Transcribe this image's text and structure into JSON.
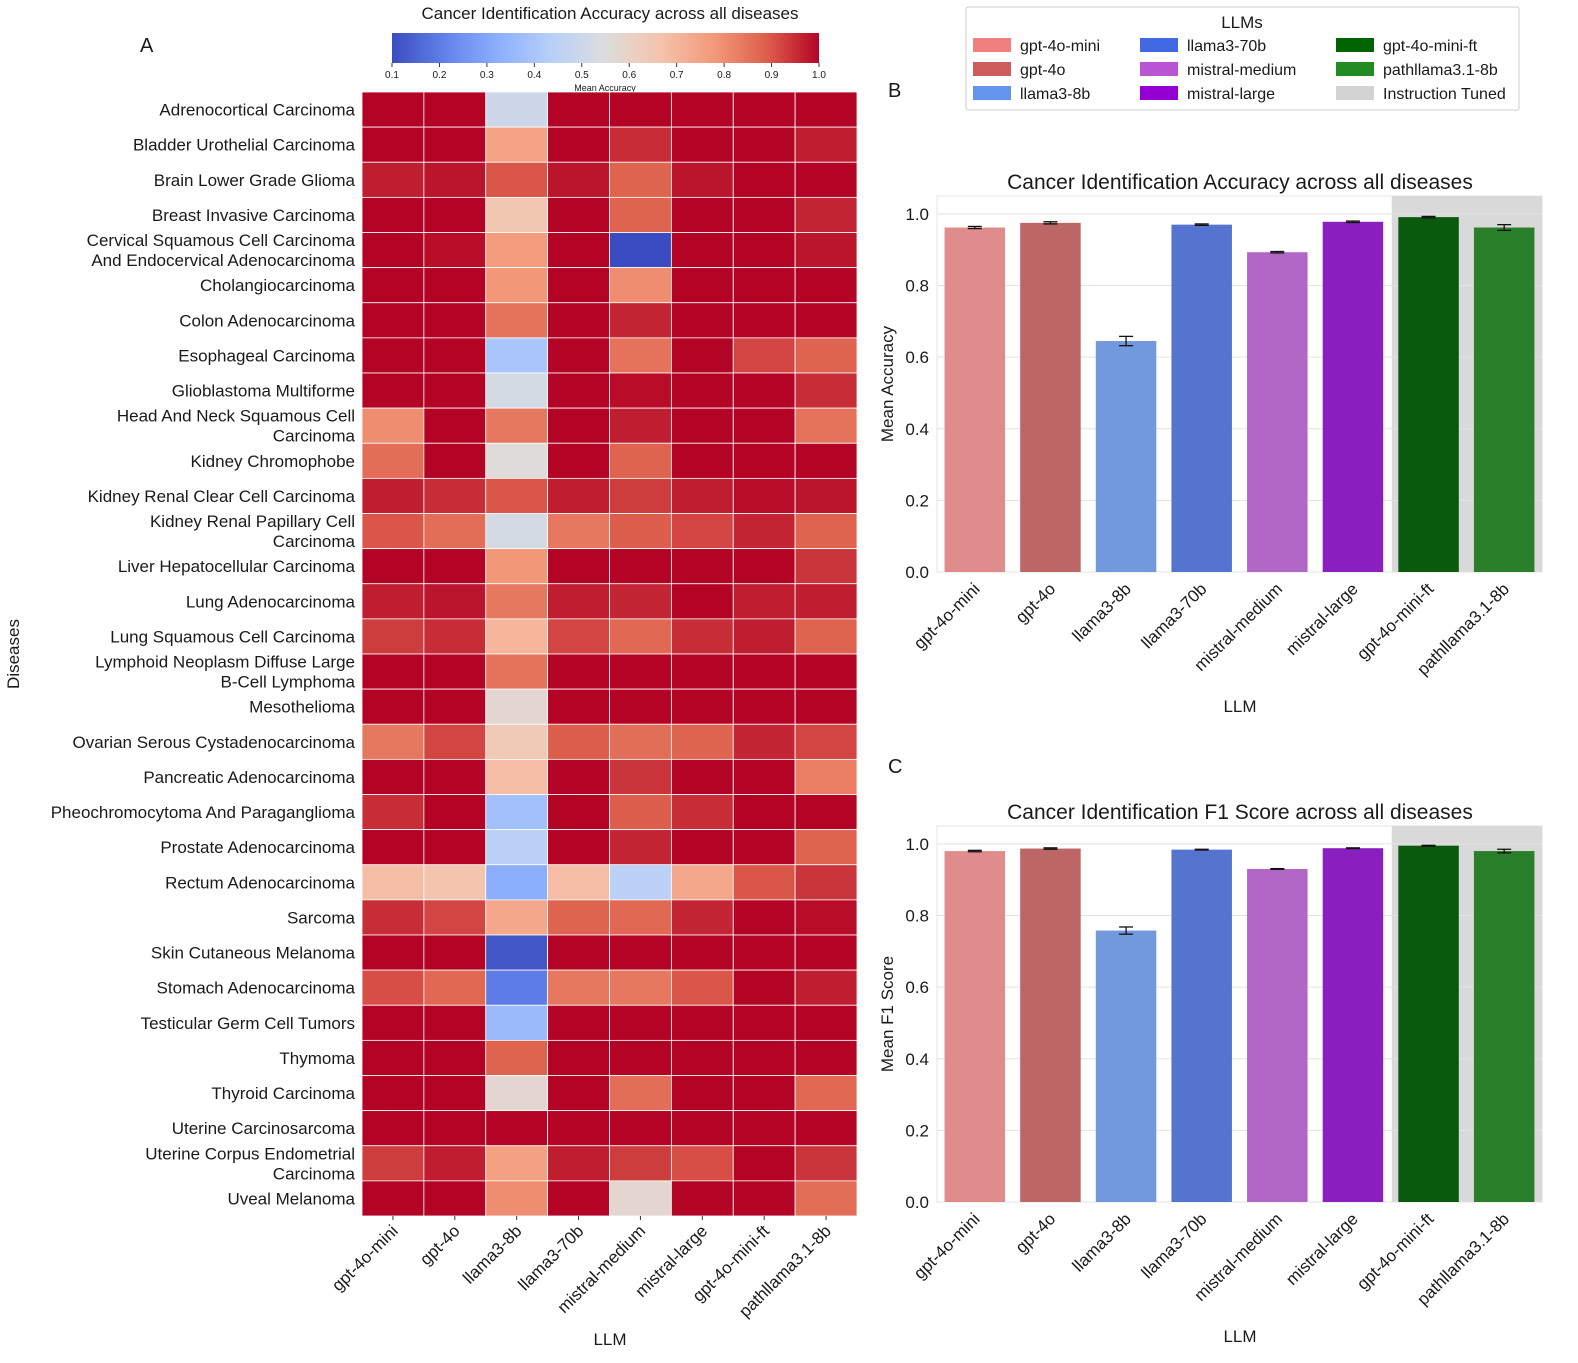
{
  "panels": {
    "a": "A",
    "b": "B",
    "c": "C"
  },
  "heatmap": {
    "title": "Cancer Identification Accuracy across all diseases",
    "xlabel": "LLM",
    "ylabel": "Diseases",
    "colorbar_label": "Mean Accuracy",
    "colorbar_ticks": [
      "0.1",
      "0.2",
      "0.3",
      "0.4",
      "0.5",
      "0.6",
      "0.7",
      "0.8",
      "0.9",
      "1.0"
    ]
  },
  "legend": {
    "title": "LLMs",
    "items": [
      {
        "label": "gpt-4o-mini",
        "color": "#f08080"
      },
      {
        "label": "gpt-4o",
        "color": "#cd5c5c"
      },
      {
        "label": "llama3-8b",
        "color": "#6495ed"
      },
      {
        "label": "llama3-70b",
        "color": "#4169e1"
      },
      {
        "label": "mistral-medium",
        "color": "#ba55d3"
      },
      {
        "label": "mistral-large",
        "color": "#9400d3"
      },
      {
        "label": "gpt-4o-mini-ft",
        "color": "#006400"
      },
      {
        "label": "pathllama3.1-8b",
        "color": "#228b22"
      },
      {
        "label": "Instruction Tuned",
        "color": "#d3d3d3"
      }
    ]
  },
  "chart_data": [
    {
      "type": "heatmap",
      "title": "Cancer Identification Accuracy across all diseases",
      "xlabel": "LLM",
      "ylabel": "Diseases",
      "colorbar_label": "Mean Accuracy",
      "vmin": 0.1,
      "vmax": 1.0,
      "colormap": "coolwarm",
      "columns": [
        "gpt-4o-mini",
        "gpt-4o",
        "llama3-8b",
        "llama3-70b",
        "mistral-medium",
        "mistral-large",
        "gpt-4o-mini-ft",
        "pathllama3.1-8b"
      ],
      "rows": [
        "Adrenocortical Carcinoma",
        "Bladder Urothelial Carcinoma",
        "Brain Lower Grade Glioma",
        "Breast Invasive Carcinoma",
        "Cervical Squamous Cell Carcinoma And Endocervical Adenocarcinoma",
        "Cholangiocarcinoma",
        "Colon Adenocarcinoma",
        "Esophageal Carcinoma",
        "Glioblastoma Multiforme",
        "Head And Neck Squamous Cell Carcinoma",
        "Kidney Chromophobe",
        "Kidney Renal Clear Cell Carcinoma",
        "Kidney Renal Papillary Cell Carcinoma",
        "Liver Hepatocellular Carcinoma",
        "Lung Adenocarcinoma",
        "Lung Squamous Cell Carcinoma",
        "Lymphoid Neoplasm Diffuse Large B-Cell Lymphoma",
        "Mesothelioma",
        "Ovarian Serous Cystadenocarcinoma",
        "Pancreatic Adenocarcinoma",
        "Pheochromocytoma And Paraganglioma",
        "Prostate Adenocarcinoma",
        "Rectum Adenocarcinoma",
        "Sarcoma",
        "Skin Cutaneous Melanoma",
        "Stomach Adenocarcinoma",
        "Testicular Germ Cell Tumors",
        "Thymoma",
        "Thyroid Carcinoma",
        "Uterine Carcinosarcoma",
        "Uterine Corpus Endometrial Carcinoma",
        "Uveal Melanoma"
      ],
      "row_label_lines": [
        [
          "Adrenocortical Carcinoma"
        ],
        [
          "Bladder Urothelial Carcinoma"
        ],
        [
          "Brain Lower Grade Glioma"
        ],
        [
          "Breast Invasive Carcinoma"
        ],
        [
          "Cervical Squamous Cell Carcinoma",
          "And Endocervical Adenocarcinoma"
        ],
        [
          "Cholangiocarcinoma"
        ],
        [
          "Colon Adenocarcinoma"
        ],
        [
          "Esophageal Carcinoma"
        ],
        [
          "Glioblastoma Multiforme"
        ],
        [
          "Head And Neck Squamous Cell",
          "Carcinoma"
        ],
        [
          "Kidney Chromophobe"
        ],
        [
          "Kidney Renal Clear Cell Carcinoma"
        ],
        [
          "Kidney Renal Papillary Cell",
          "Carcinoma"
        ],
        [
          "Liver Hepatocellular Carcinoma"
        ],
        [
          "Lung Adenocarcinoma"
        ],
        [
          "Lung Squamous Cell Carcinoma"
        ],
        [
          "Lymphoid Neoplasm Diffuse Large",
          "B-Cell Lymphoma"
        ],
        [
          "Mesothelioma"
        ],
        [
          "Ovarian Serous Cystadenocarcinoma"
        ],
        [
          "Pancreatic Adenocarcinoma"
        ],
        [
          "Pheochromocytoma And Paraganglioma"
        ],
        [
          "Prostate Adenocarcinoma"
        ],
        [
          "Rectum Adenocarcinoma"
        ],
        [
          "Sarcoma"
        ],
        [
          "Skin Cutaneous Melanoma"
        ],
        [
          "Stomach Adenocarcinoma"
        ],
        [
          "Testicular Germ Cell Tumors"
        ],
        [
          "Thymoma"
        ],
        [
          "Thyroid Carcinoma"
        ],
        [
          "Uterine Carcinosarcoma"
        ],
        [
          "Uterine Corpus Endometrial",
          "Carcinoma"
        ],
        [
          "Uveal Melanoma"
        ]
      ],
      "values": [
        [
          1.0,
          1.0,
          0.5,
          1.0,
          1.0,
          1.0,
          1.0,
          1.0
        ],
        [
          1.0,
          1.0,
          0.75,
          1.0,
          0.95,
          1.0,
          1.0,
          0.97
        ],
        [
          0.97,
          0.98,
          0.9,
          0.98,
          0.88,
          0.98,
          1.0,
          1.0
        ],
        [
          1.0,
          1.0,
          0.65,
          1.0,
          0.88,
          1.0,
          1.0,
          0.96
        ],
        [
          1.0,
          0.99,
          0.77,
          1.0,
          0.1,
          1.0,
          1.0,
          0.98
        ],
        [
          1.0,
          1.0,
          0.78,
          1.0,
          0.8,
          1.0,
          1.0,
          1.0
        ],
        [
          1.0,
          1.0,
          0.85,
          1.0,
          0.96,
          1.0,
          1.0,
          1.0
        ],
        [
          1.0,
          1.0,
          0.4,
          1.0,
          0.85,
          1.0,
          0.92,
          0.88
        ],
        [
          1.0,
          1.0,
          0.52,
          1.0,
          0.99,
          1.0,
          1.0,
          0.95
        ],
        [
          0.8,
          1.0,
          0.84,
          1.0,
          0.97,
          1.0,
          1.0,
          0.85
        ],
        [
          0.86,
          1.0,
          0.56,
          1.0,
          0.88,
          1.0,
          1.0,
          1.0
        ],
        [
          0.97,
          0.95,
          0.9,
          0.97,
          0.93,
          0.97,
          0.99,
          0.98
        ],
        [
          0.9,
          0.86,
          0.52,
          0.84,
          0.89,
          0.92,
          0.96,
          0.88
        ],
        [
          1.0,
          1.0,
          0.78,
          1.0,
          1.0,
          1.0,
          1.0,
          0.94
        ],
        [
          0.97,
          0.98,
          0.84,
          0.97,
          0.96,
          1.0,
          0.97,
          0.97
        ],
        [
          0.93,
          0.95,
          0.7,
          0.92,
          0.87,
          0.95,
          0.97,
          0.88
        ],
        [
          1.0,
          1.0,
          0.85,
          1.0,
          1.0,
          1.0,
          1.0,
          1.0
        ],
        [
          1.0,
          1.0,
          0.58,
          1.0,
          1.0,
          1.0,
          1.0,
          1.0
        ],
        [
          0.84,
          0.92,
          0.64,
          0.89,
          0.86,
          0.88,
          0.96,
          0.92
        ],
        [
          1.0,
          1.0,
          0.68,
          1.0,
          0.94,
          1.0,
          1.0,
          0.83
        ],
        [
          0.95,
          1.0,
          0.38,
          1.0,
          0.89,
          0.95,
          1.0,
          1.0
        ],
        [
          1.0,
          1.0,
          0.45,
          1.0,
          0.96,
          1.0,
          1.0,
          0.88
        ],
        [
          0.68,
          0.66,
          0.32,
          0.68,
          0.45,
          0.74,
          0.9,
          0.94
        ],
        [
          0.95,
          0.92,
          0.74,
          0.88,
          0.87,
          0.96,
          1.0,
          0.99
        ],
        [
          1.0,
          1.0,
          0.12,
          1.0,
          1.0,
          1.0,
          1.0,
          1.0
        ],
        [
          0.91,
          0.87,
          0.2,
          0.84,
          0.84,
          0.9,
          1.0,
          0.97
        ],
        [
          1.0,
          1.0,
          0.36,
          1.0,
          1.0,
          1.0,
          1.0,
          1.0
        ],
        [
          1.0,
          1.0,
          0.88,
          1.0,
          1.0,
          1.0,
          1.0,
          1.0
        ],
        [
          1.0,
          1.0,
          0.58,
          1.0,
          0.86,
          1.0,
          1.0,
          0.87
        ],
        [
          1.0,
          1.0,
          1.0,
          1.0,
          1.0,
          1.0,
          1.0,
          1.0
        ],
        [
          0.93,
          0.97,
          0.76,
          0.97,
          0.93,
          0.91,
          1.0,
          0.94
        ],
        [
          1.0,
          1.0,
          0.8,
          1.0,
          0.58,
          1.0,
          1.0,
          0.86
        ]
      ]
    },
    {
      "type": "bar",
      "title": "Cancer Identification Accuracy across all diseases",
      "xlabel": "LLM",
      "ylabel": "Mean Accuracy",
      "ylim": [
        0,
        1.05
      ],
      "yticks": [
        0.0,
        0.2,
        0.4,
        0.6,
        0.8,
        1.0
      ],
      "categories": [
        "gpt-4o-mini",
        "gpt-4o",
        "llama3-8b",
        "llama3-70b",
        "mistral-medium",
        "mistral-large",
        "gpt-4o-mini-ft",
        "pathllama3.1-8b"
      ],
      "values": [
        0.962,
        0.975,
        0.645,
        0.97,
        0.893,
        0.978,
        0.991,
        0.962
      ],
      "errors": [
        0.003,
        0.003,
        0.013,
        0.002,
        0.002,
        0.002,
        0.002,
        0.008
      ],
      "colors": [
        "#e08c8c",
        "#bd6666",
        "#7399dd",
        "#5474cf",
        "#b266c5",
        "#8a1fbf",
        "#0a5a0d",
        "#2a7f2a"
      ],
      "shaded_categories": [
        "gpt-4o-mini-ft",
        "pathllama3.1-8b"
      ],
      "shade_label": "Instruction Tuned"
    },
    {
      "type": "bar",
      "title": "Cancer Identification F1 Score across all diseases",
      "xlabel": "LLM",
      "ylabel": "Mean F1 Score",
      "ylim": [
        0,
        1.05
      ],
      "yticks": [
        0.0,
        0.2,
        0.4,
        0.6,
        0.8,
        1.0
      ],
      "categories": [
        "gpt-4o-mini",
        "gpt-4o",
        "llama3-8b",
        "llama3-70b",
        "mistral-medium",
        "mistral-large",
        "gpt-4o-mini-ft",
        "pathllama3.1-8b"
      ],
      "values": [
        0.98,
        0.987,
        0.758,
        0.984,
        0.93,
        0.988,
        0.995,
        0.98
      ],
      "errors": [
        0.002,
        0.002,
        0.01,
        0.001,
        0.001,
        0.001,
        0.001,
        0.005
      ],
      "colors": [
        "#e08c8c",
        "#bd6666",
        "#7399dd",
        "#5474cf",
        "#b266c5",
        "#8a1fbf",
        "#0a5a0d",
        "#2a7f2a"
      ],
      "shaded_categories": [
        "gpt-4o-mini-ft",
        "pathllama3.1-8b"
      ],
      "shade_label": "Instruction Tuned"
    }
  ]
}
